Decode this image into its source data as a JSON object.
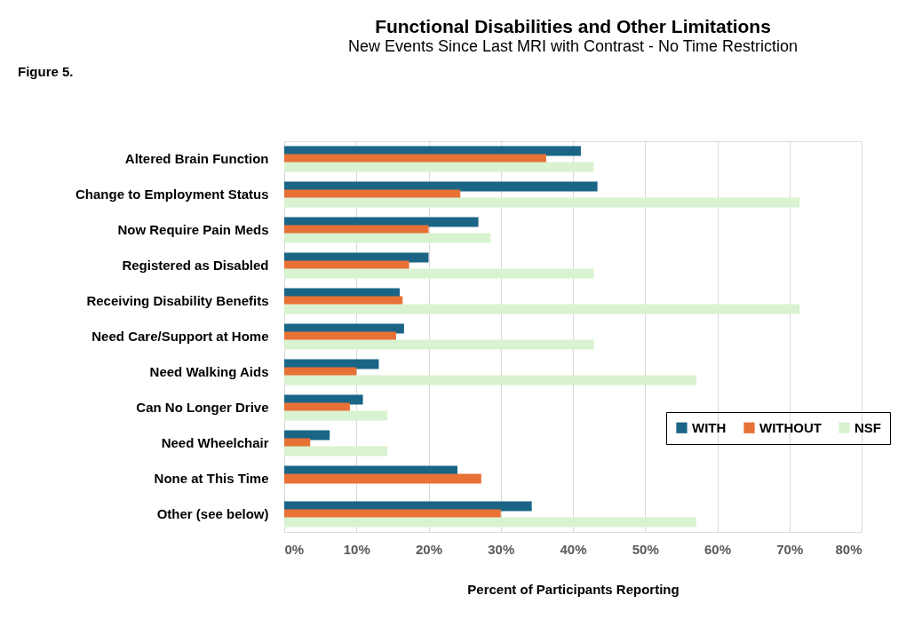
{
  "chart_data": {
    "type": "bar",
    "orientation": "horizontal",
    "title": "Functional Disabilities and Other Limitations",
    "subtitle": "New Events Since Last MRI with Contrast - No Time Restriction",
    "xlabel": "Percent of Participants Reporting",
    "categories": [
      "Altered Brain Function",
      "Change to Employment Status",
      "Now Require Pain Meds",
      "Registered as Disabled",
      "Receiving Disability Benefits",
      "Need Care/Support at Home",
      "Need Walking Aids",
      "Can No Longer Drive",
      "Need Wheelchair",
      "None at This Time",
      "Other (see below)"
    ],
    "series": [
      {
        "name": "WITH",
        "color": "#1a6586",
        "values": [
          41.1,
          43.4,
          26.9,
          20.0,
          16.0,
          16.6,
          13.1,
          10.9,
          6.3,
          24.0,
          34.3
        ]
      },
      {
        "name": "WITHOUT",
        "color": "#e87135",
        "values": [
          36.3,
          24.4,
          20.0,
          17.3,
          16.4,
          15.5,
          10.0,
          9.1,
          3.6,
          27.3,
          30.0
        ]
      },
      {
        "name": "NSF",
        "color": "#d9f2d0",
        "values": [
          42.9,
          71.4,
          28.6,
          42.9,
          71.4,
          42.9,
          57.1,
          14.3,
          14.3,
          null,
          57.1
        ]
      }
    ],
    "xlim": [
      0,
      80
    ],
    "xticks": [
      {
        "value": 0,
        "label": "0%"
      },
      {
        "value": 10,
        "label": "10%"
      },
      {
        "value": 20,
        "label": "20%"
      },
      {
        "value": 30,
        "label": "30%"
      },
      {
        "value": 40,
        "label": "40%"
      },
      {
        "value": 50,
        "label": "50%"
      },
      {
        "value": 60,
        "label": "60%"
      },
      {
        "value": 70,
        "label": "70%"
      },
      {
        "value": 80,
        "label": "80%"
      }
    ],
    "grid": "x",
    "legend": "bottom right",
    "annotations": [
      "Figure 5."
    ]
  }
}
